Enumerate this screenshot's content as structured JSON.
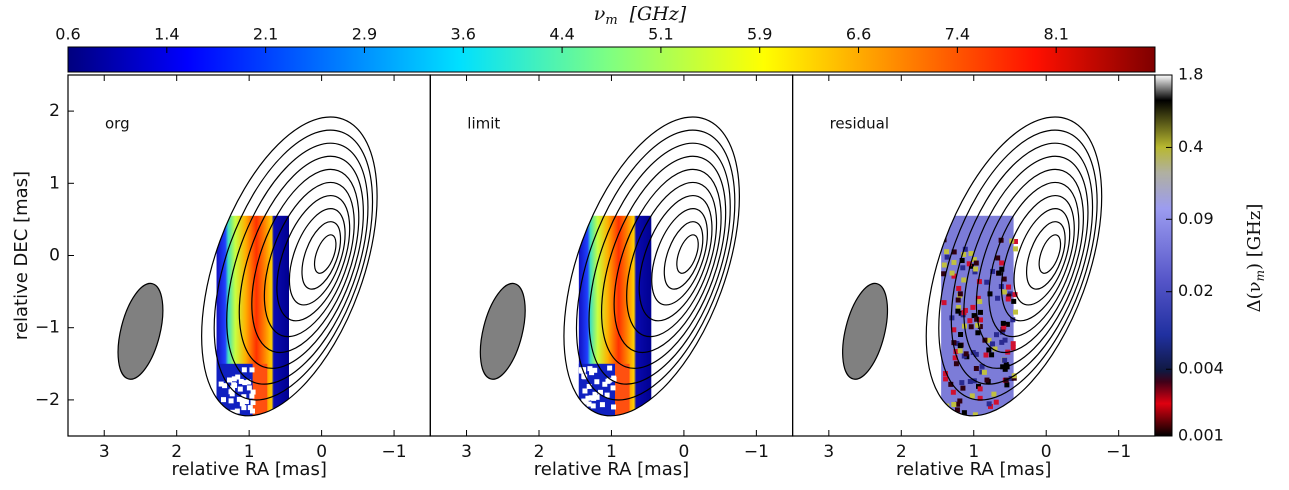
{
  "chart_data": [
    {
      "type": "heatmap",
      "colormap": "jet",
      "panel_label": "org",
      "xlabel": "relative RA [mas]",
      "ylabel": "relative DEC [mas]",
      "xlim": [
        3.5,
        -1.5
      ],
      "xticks": [
        3,
        2,
        1,
        0,
        {
          "value": -1,
          "label": "−1"
        }
      ],
      "ylim": [
        -2.5,
        2.5
      ],
      "yticks": [
        {
          "value": -2,
          "label": "−2"
        },
        {
          "value": -1,
          "label": "−1"
        },
        0,
        1,
        2
      ]
    },
    {
      "type": "heatmap",
      "colormap": "jet",
      "panel_label": "limit",
      "xlabel": "relative RA [mas]",
      "xlim": [
        3.5,
        -1.5
      ],
      "xticks": [
        3,
        2,
        1,
        0,
        {
          "value": -1,
          "label": "−1"
        }
      ],
      "ylim": [
        -2.5,
        2.5
      ]
    },
    {
      "type": "heatmap",
      "colormap": "residual",
      "panel_label": "residual",
      "xlabel": "relative RA [mas]",
      "xlim": [
        3.5,
        -1.5
      ],
      "xticks": [
        3,
        2,
        1,
        0,
        {
          "value": -1,
          "label": "−1"
        }
      ],
      "ylim": [
        -2.5,
        2.5
      ]
    }
  ],
  "colorbar": {
    "label": {
      "symbol": "ν",
      "subscript": "m",
      "unit": "[GHz]"
    },
    "lim": [
      0.6,
      8.85
    ],
    "ticks": [
      0.6,
      {
        "value": 1.35,
        "label": "1.4"
      },
      2.1,
      {
        "value": 2.85,
        "label": "2.9"
      },
      3.6,
      {
        "value": 4.35,
        "label": "4.4"
      },
      5.1,
      {
        "value": 5.85,
        "label": "5.9"
      },
      6.6,
      {
        "value": 7.35,
        "label": "7.4"
      },
      8.1
    ]
  },
  "residual_colorbar": {
    "label": {
      "prefix": "Δ(ν",
      "subscript": "m",
      "suffix": ") [GHz]"
    },
    "log": true,
    "lim": [
      0.001,
      1.8
    ],
    "ticks": [
      0.001,
      0.004,
      0.02,
      0.09,
      0.4,
      1.8
    ]
  }
}
